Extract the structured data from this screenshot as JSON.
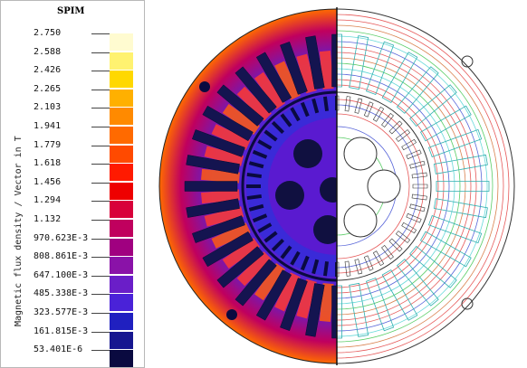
{
  "legend": {
    "title": "SPIM",
    "axis_label": "Magnetic flux density / Vector in T",
    "levels": [
      "2.750",
      "2.588",
      "2.426",
      "2.265",
      "2.103",
      "1.941",
      "1.779",
      "1.618",
      "1.456",
      "1.294",
      "1.132",
      "970.623E-3",
      "808.861E-3",
      "647.100E-3",
      "485.338E-3",
      "323.577E-3",
      "161.815E-3",
      "53.401E-6"
    ],
    "colors": [
      "#fffbd0",
      "#fff270",
      "#ffd800",
      "#ffb000",
      "#ff8a00",
      "#ff6a00",
      "#ff4a00",
      "#ff1a00",
      "#ee0000",
      "#d8003a",
      "#c0005e",
      "#a00080",
      "#8a12a8",
      "#6a1ec8",
      "#4a22d8",
      "#2020c0",
      "#161690",
      "#0a0a40"
    ]
  },
  "view": {
    "left_half": "flux-density-color-map",
    "right_half": "flux-line-contours",
    "colors": {
      "background_blue": "#3a2ad8",
      "slot_dark": "#141450",
      "tooth_orange": "#ff5a10",
      "contour_red": "#e03030",
      "contour_green": "#30c040",
      "contour_cyan": "#40d0d0",
      "contour_blue": "#3040d0"
    }
  }
}
